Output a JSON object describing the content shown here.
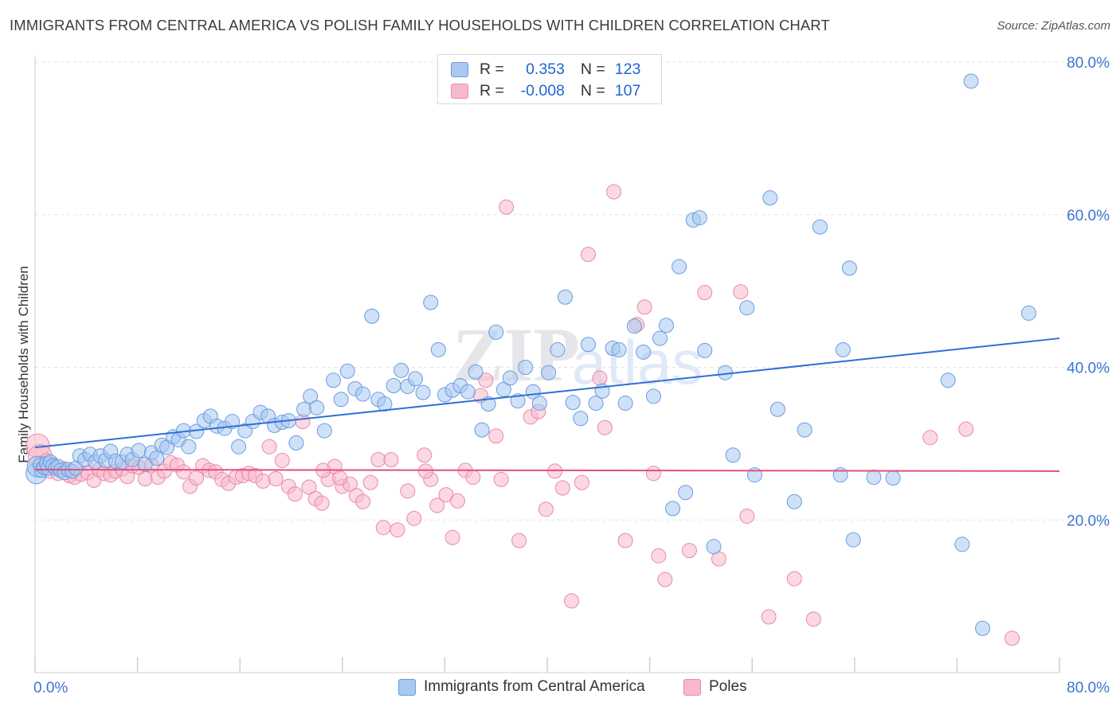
{
  "header": {
    "title": "IMMIGRANTS FROM CENTRAL AMERICA VS POLISH FAMILY HOUSEHOLDS WITH CHILDREN CORRELATION CHART",
    "source": "Source: ZipAtlas.com"
  },
  "watermark": {
    "part1": "ZIP",
    "part2": "atlas"
  },
  "legend": {
    "rows": [
      {
        "r_label": "R =",
        "r_value": "0.353",
        "n_label": "N =",
        "n_value": "123"
      },
      {
        "r_label": "R =",
        "r_value": "-0.008",
        "n_label": "N =",
        "n_value": "107"
      }
    ]
  },
  "chart_data": {
    "type": "scatter",
    "title": "IMMIGRANTS FROM CENTRAL AMERICA VS POLISH FAMILY HOUSEHOLDS WITH CHILDREN CORRELATION CHART",
    "xlabel": "",
    "ylabel": "Family Households with Children",
    "xlim": [
      0,
      80
    ],
    "ylim": [
      0,
      80
    ],
    "x_tick_labels": [
      "0.0%",
      "80.0%"
    ],
    "y_tick_labels": [
      "20.0%",
      "40.0%",
      "60.0%",
      "80.0%"
    ],
    "y_ticks": [
      20,
      40,
      60,
      80
    ],
    "grid": true,
    "series": [
      {
        "name": "Immigrants from Central America",
        "color": "#a8c8f0",
        "edge": "#6a9be0",
        "line_color": "#2f6fd8",
        "r": 0.353,
        "n": 123,
        "trend": {
          "x0": 0,
          "y0": 29.5,
          "x1": 80,
          "y1": 43.8
        },
        "points": [
          [
            0.1,
            26.1
          ],
          [
            0.2,
            27.0
          ],
          [
            0.4,
            27.2
          ],
          [
            0.5,
            26.5
          ],
          [
            0.7,
            26.9
          ],
          [
            0.9,
            27.4
          ],
          [
            1.0,
            26.8
          ],
          [
            1.2,
            27.6
          ],
          [
            1.4,
            27.1
          ],
          [
            1.6,
            26.8
          ],
          [
            1.8,
            27.0
          ],
          [
            2.0,
            26.5
          ],
          [
            2.3,
            26.2
          ],
          [
            2.6,
            26.6
          ],
          [
            2.9,
            26.4
          ],
          [
            3.2,
            26.8
          ],
          [
            3.5,
            28.4
          ],
          [
            3.9,
            27.9
          ],
          [
            4.3,
            28.6
          ],
          [
            4.7,
            27.6
          ],
          [
            5.1,
            28.4
          ],
          [
            5.5,
            27.8
          ],
          [
            5.9,
            29.0
          ],
          [
            6.3,
            27.7
          ],
          [
            6.8,
            27.6
          ],
          [
            7.2,
            28.6
          ],
          [
            7.6,
            27.9
          ],
          [
            8.1,
            29.1
          ],
          [
            8.6,
            27.3
          ],
          [
            9.1,
            28.8
          ],
          [
            9.5,
            28.1
          ],
          [
            9.9,
            29.8
          ],
          [
            10.3,
            29.5
          ],
          [
            10.8,
            30.9
          ],
          [
            11.2,
            30.5
          ],
          [
            11.6,
            31.7
          ],
          [
            12.0,
            29.6
          ],
          [
            12.6,
            31.6
          ],
          [
            13.2,
            33.0
          ],
          [
            13.7,
            33.6
          ],
          [
            14.2,
            32.3
          ],
          [
            14.8,
            32.0
          ],
          [
            15.4,
            32.9
          ],
          [
            15.9,
            29.6
          ],
          [
            16.4,
            31.7
          ],
          [
            17.0,
            32.9
          ],
          [
            17.6,
            34.1
          ],
          [
            18.2,
            33.6
          ],
          [
            18.7,
            32.4
          ],
          [
            19.3,
            32.8
          ],
          [
            19.8,
            33.0
          ],
          [
            20.4,
            30.1
          ],
          [
            21.0,
            34.5
          ],
          [
            21.5,
            36.2
          ],
          [
            22.0,
            34.7
          ],
          [
            22.6,
            31.7
          ],
          [
            23.3,
            38.3
          ],
          [
            23.9,
            35.8
          ],
          [
            24.4,
            39.5
          ],
          [
            25.0,
            37.2
          ],
          [
            25.6,
            36.5
          ],
          [
            26.3,
            46.7
          ],
          [
            26.8,
            35.8
          ],
          [
            27.3,
            35.2
          ],
          [
            28.0,
            37.6
          ],
          [
            28.6,
            39.6
          ],
          [
            29.1,
            37.5
          ],
          [
            29.7,
            38.5
          ],
          [
            30.3,
            36.7
          ],
          [
            30.9,
            48.5
          ],
          [
            31.5,
            42.3
          ],
          [
            32.0,
            36.4
          ],
          [
            32.6,
            37.0
          ],
          [
            33.2,
            37.6
          ],
          [
            33.8,
            36.8
          ],
          [
            34.4,
            39.4
          ],
          [
            34.9,
            31.8
          ],
          [
            35.4,
            35.2
          ],
          [
            36.0,
            44.6
          ],
          [
            36.6,
            37.1
          ],
          [
            37.1,
            38.6
          ],
          [
            37.7,
            35.6
          ],
          [
            38.3,
            40.0
          ],
          [
            38.9,
            36.8
          ],
          [
            39.4,
            35.3
          ],
          [
            40.1,
            39.3
          ],
          [
            40.8,
            42.3
          ],
          [
            41.4,
            49.2
          ],
          [
            42.0,
            35.4
          ],
          [
            42.6,
            33.3
          ],
          [
            43.2,
            43.0
          ],
          [
            43.8,
            35.3
          ],
          [
            44.3,
            36.9
          ],
          [
            45.1,
            42.5
          ],
          [
            45.6,
            42.3
          ],
          [
            46.1,
            35.3
          ],
          [
            46.8,
            45.4
          ],
          [
            47.5,
            42.0
          ],
          [
            48.3,
            36.2
          ],
          [
            48.8,
            43.8
          ],
          [
            49.3,
            45.5
          ],
          [
            49.8,
            21.5
          ],
          [
            50.3,
            53.2
          ],
          [
            50.8,
            23.6
          ],
          [
            51.4,
            59.3
          ],
          [
            51.9,
            59.6
          ],
          [
            52.3,
            42.2
          ],
          [
            53.0,
            16.5
          ],
          [
            53.9,
            39.3
          ],
          [
            54.5,
            28.5
          ],
          [
            55.6,
            47.8
          ],
          [
            56.2,
            25.9
          ],
          [
            57.4,
            62.2
          ],
          [
            58.0,
            34.5
          ],
          [
            59.3,
            22.4
          ],
          [
            60.1,
            31.8
          ],
          [
            61.3,
            58.4
          ],
          [
            62.9,
            25.9
          ],
          [
            63.9,
            17.4
          ],
          [
            65.5,
            25.6
          ],
          [
            63.6,
            53.0
          ],
          [
            63.1,
            42.3
          ],
          [
            67.0,
            25.5
          ],
          [
            71.3,
            38.3
          ],
          [
            72.4,
            16.8
          ],
          [
            73.1,
            77.5
          ],
          [
            74.0,
            5.8
          ],
          [
            77.6,
            47.1
          ]
        ]
      },
      {
        "name": "Poles",
        "color": "#f7b8cb",
        "edge": "#e88aa8",
        "line_color": "#e0507f",
        "r": -0.008,
        "n": 107,
        "trend": {
          "x0": 0,
          "y0": 26.6,
          "x1": 80,
          "y1": 26.4
        },
        "points": [
          [
            0.2,
            29.7
          ],
          [
            0.4,
            28.3
          ],
          [
            0.6,
            27.1
          ],
          [
            0.9,
            27.8
          ],
          [
            1.1,
            26.4
          ],
          [
            1.4,
            27.2
          ],
          [
            1.8,
            26.1
          ],
          [
            2.3,
            26.7
          ],
          [
            2.7,
            25.8
          ],
          [
            3.1,
            25.6
          ],
          [
            3.6,
            26.0
          ],
          [
            4.1,
            26.2
          ],
          [
            4.6,
            25.2
          ],
          [
            5.0,
            26.6
          ],
          [
            5.4,
            26.1
          ],
          [
            5.9,
            25.9
          ],
          [
            6.3,
            26.4
          ],
          [
            6.8,
            26.7
          ],
          [
            7.2,
            25.7
          ],
          [
            7.6,
            27.1
          ],
          [
            8.1,
            26.9
          ],
          [
            8.6,
            25.4
          ],
          [
            9.1,
            27.2
          ],
          [
            9.6,
            25.6
          ],
          [
            10.1,
            26.4
          ],
          [
            10.6,
            27.5
          ],
          [
            11.1,
            27.2
          ],
          [
            11.6,
            26.3
          ],
          [
            12.1,
            24.4
          ],
          [
            12.6,
            25.5
          ],
          [
            13.1,
            27.1
          ],
          [
            13.6,
            26.5
          ],
          [
            14.1,
            26.3
          ],
          [
            14.6,
            25.3
          ],
          [
            15.1,
            24.8
          ],
          [
            15.7,
            25.6
          ],
          [
            16.2,
            25.8
          ],
          [
            16.7,
            26.1
          ],
          [
            17.2,
            25.8
          ],
          [
            17.8,
            25.1
          ],
          [
            18.3,
            29.6
          ],
          [
            18.8,
            25.4
          ],
          [
            19.3,
            27.8
          ],
          [
            19.8,
            24.4
          ],
          [
            20.3,
            23.4
          ],
          [
            20.9,
            32.9
          ],
          [
            21.4,
            24.3
          ],
          [
            21.9,
            22.8
          ],
          [
            22.4,
            22.2
          ],
          [
            22.9,
            25.3
          ],
          [
            23.4,
            27.0
          ],
          [
            24.0,
            24.4
          ],
          [
            24.6,
            24.7
          ],
          [
            25.1,
            23.2
          ],
          [
            25.6,
            22.4
          ],
          [
            26.2,
            24.9
          ],
          [
            26.8,
            27.9
          ],
          [
            27.2,
            19.0
          ],
          [
            27.8,
            27.9
          ],
          [
            28.3,
            18.7
          ],
          [
            29.1,
            23.8
          ],
          [
            29.6,
            20.2
          ],
          [
            30.4,
            28.5
          ],
          [
            30.9,
            25.3
          ],
          [
            31.4,
            21.9
          ],
          [
            32.1,
            23.3
          ],
          [
            32.6,
            17.7
          ],
          [
            33.0,
            22.5
          ],
          [
            33.6,
            26.5
          ],
          [
            34.2,
            25.6
          ],
          [
            34.8,
            36.3
          ],
          [
            35.2,
            38.3
          ],
          [
            36.0,
            31.0
          ],
          [
            36.4,
            25.3
          ],
          [
            36.8,
            61.0
          ],
          [
            37.8,
            17.3
          ],
          [
            38.7,
            33.5
          ],
          [
            39.3,
            34.2
          ],
          [
            39.9,
            21.4
          ],
          [
            40.6,
            26.4
          ],
          [
            41.2,
            24.2
          ],
          [
            41.9,
            9.4
          ],
          [
            42.7,
            24.9
          ],
          [
            43.2,
            54.8
          ],
          [
            44.1,
            38.6
          ],
          [
            44.5,
            32.1
          ],
          [
            45.2,
            63.0
          ],
          [
            46.1,
            17.3
          ],
          [
            47.0,
            45.6
          ],
          [
            47.6,
            47.9
          ],
          [
            48.3,
            26.1
          ],
          [
            48.7,
            15.3
          ],
          [
            49.2,
            12.2
          ],
          [
            51.1,
            16.0
          ],
          [
            52.3,
            49.8
          ],
          [
            53.4,
            14.9
          ],
          [
            55.1,
            49.9
          ],
          [
            55.6,
            20.5
          ],
          [
            57.3,
            7.3
          ],
          [
            59.3,
            12.3
          ],
          [
            60.8,
            7.0
          ],
          [
            69.9,
            30.8
          ],
          [
            72.7,
            31.9
          ],
          [
            76.3,
            4.5
          ],
          [
            22.5,
            26.5
          ],
          [
            23.8,
            25.5
          ],
          [
            30.5,
            26.4
          ]
        ]
      }
    ]
  },
  "bottom_legend": {
    "items": [
      {
        "label": "Immigrants from Central America"
      },
      {
        "label": "Poles"
      }
    ]
  }
}
